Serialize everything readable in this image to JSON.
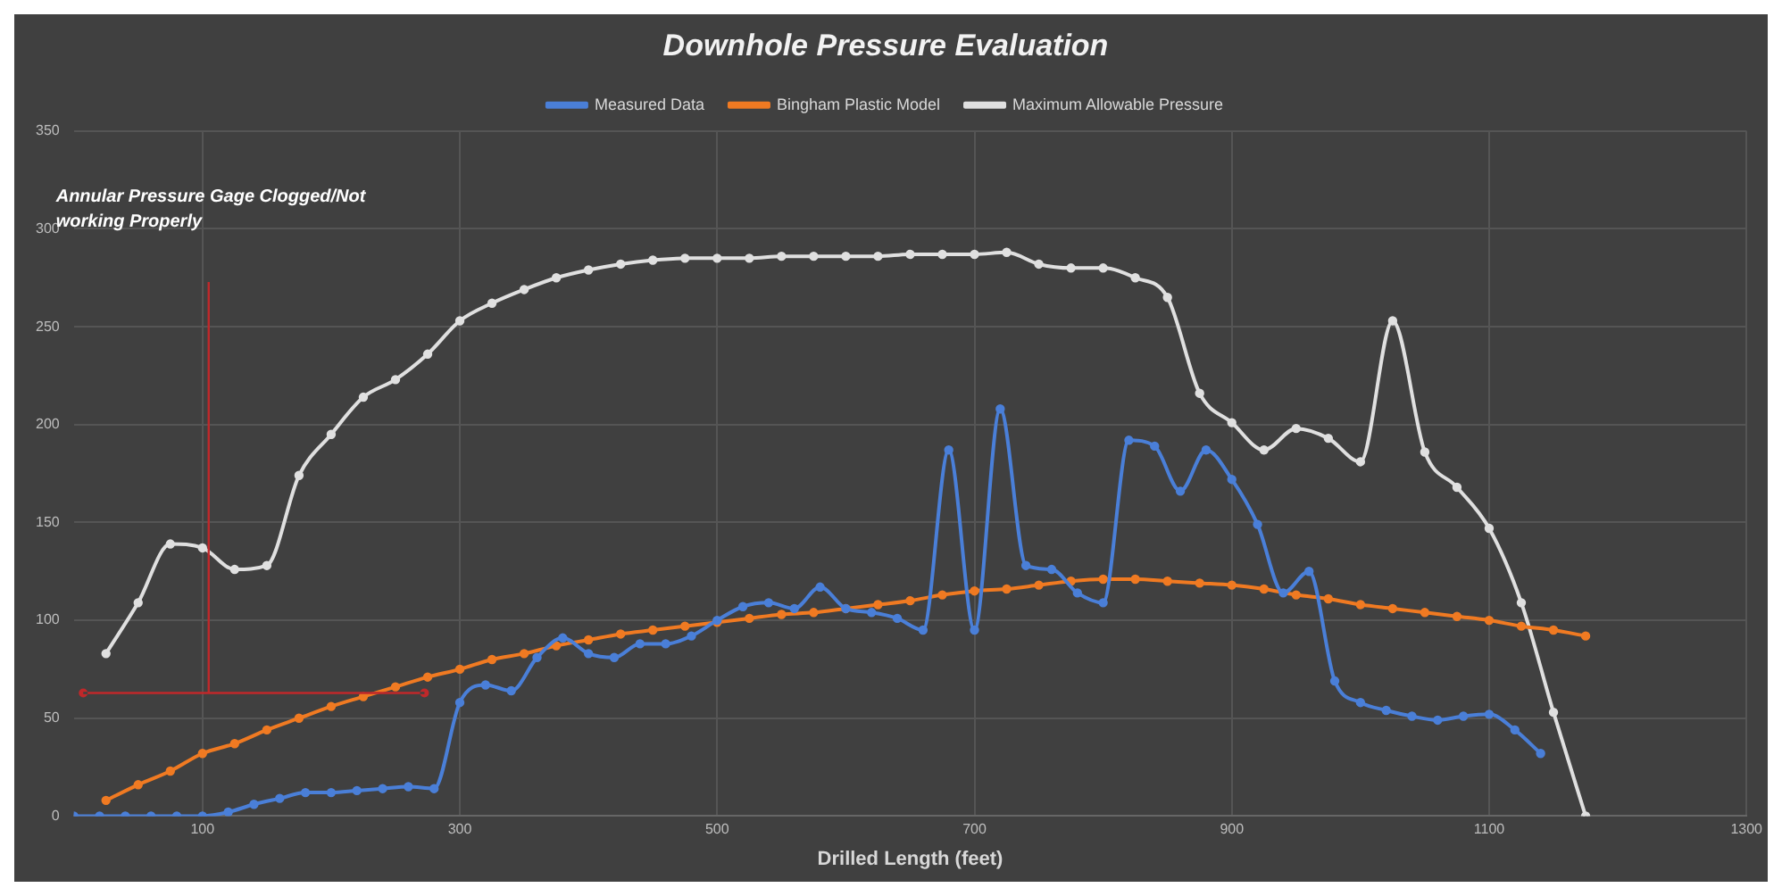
{
  "chart_data": {
    "type": "line",
    "title": "Downhole Pressure Evaluation",
    "xlabel": "Drilled Length (feet)",
    "annotations": [
      "Annular Pressure Gage Clogged/Not working Properly"
    ],
    "series": [
      {
        "name": "Measured Data",
        "color": "#4a7fd8",
        "x": [
          0,
          20,
          40,
          60,
          80,
          100,
          120,
          140,
          160,
          180,
          200,
          220,
          240,
          260,
          280,
          300,
          320,
          340,
          360,
          380,
          400,
          420,
          440,
          460,
          480,
          500,
          520,
          540,
          560,
          580,
          600,
          620,
          640,
          660,
          680,
          700,
          720,
          740,
          760,
          780,
          800,
          820,
          840,
          860,
          880,
          900,
          920,
          940,
          960,
          980,
          1000,
          1020,
          1040,
          1060,
          1080,
          1100,
          1120,
          1140
        ],
        "values": [
          0,
          0,
          0,
          0,
          0,
          0,
          2,
          6,
          9,
          12,
          12,
          13,
          14,
          15,
          14,
          58,
          67,
          64,
          81,
          91,
          83,
          81,
          88,
          88,
          92,
          100,
          107,
          109,
          106,
          117,
          106,
          104,
          101,
          95,
          187,
          95,
          208,
          128,
          126,
          114,
          109,
          192,
          189,
          166,
          187,
          172,
          149,
          114,
          125,
          69,
          58,
          54,
          51,
          49,
          51,
          52,
          44,
          32
        ]
      },
      {
        "name": "Bingham Plastic Model",
        "color": "#f07a22",
        "x": [
          25,
          50,
          75,
          100,
          125,
          150,
          175,
          200,
          225,
          250,
          275,
          300,
          325,
          350,
          375,
          400,
          425,
          450,
          475,
          500,
          525,
          550,
          575,
          600,
          625,
          650,
          675,
          700,
          725,
          750,
          775,
          800,
          825,
          850,
          875,
          900,
          925,
          950,
          975,
          1000,
          1025,
          1050,
          1075,
          1100,
          1125,
          1150,
          1175
        ],
        "values": [
          8,
          16,
          23,
          32,
          37,
          44,
          50,
          56,
          61,
          66,
          71,
          75,
          80,
          83,
          87,
          90,
          93,
          95,
          97,
          99,
          101,
          103,
          104,
          106,
          108,
          110,
          113,
          115,
          116,
          118,
          120,
          121,
          121,
          120,
          119,
          118,
          116,
          113,
          111,
          108,
          106,
          104,
          102,
          100,
          97,
          95,
          92
        ]
      },
      {
        "name": "Maximum Allowable Pressure",
        "color": "#e0e0e0",
        "x": [
          25,
          50,
          75,
          100,
          125,
          150,
          175,
          200,
          225,
          250,
          275,
          300,
          325,
          350,
          375,
          400,
          425,
          450,
          475,
          500,
          525,
          550,
          575,
          600,
          625,
          650,
          675,
          700,
          725,
          750,
          775,
          800,
          825,
          850,
          875,
          900,
          925,
          950,
          975,
          1000,
          1025,
          1050,
          1075,
          1100,
          1125,
          1150,
          1175
        ],
        "values": [
          83,
          109,
          139,
          137,
          126,
          128,
          174,
          195,
          214,
          223,
          236,
          253,
          262,
          269,
          275,
          279,
          282,
          284,
          285,
          285,
          285,
          286,
          286,
          286,
          286,
          287,
          287,
          287,
          288,
          282,
          280,
          280,
          275,
          265,
          216,
          201,
          187,
          198,
          193,
          181,
          253,
          186,
          168,
          147,
          109,
          53,
          0
        ]
      }
    ],
    "xlim": [
      0,
      1300
    ],
    "xticks": [
      100,
      300,
      500,
      700,
      900,
      1100,
      1300
    ],
    "ylim": [
      0,
      350
    ],
    "yticks": [
      0,
      50,
      100,
      150,
      200,
      250,
      300,
      350
    ],
    "grid": true,
    "legend": "top",
    "marker": "circle",
    "line_style": "solid"
  }
}
